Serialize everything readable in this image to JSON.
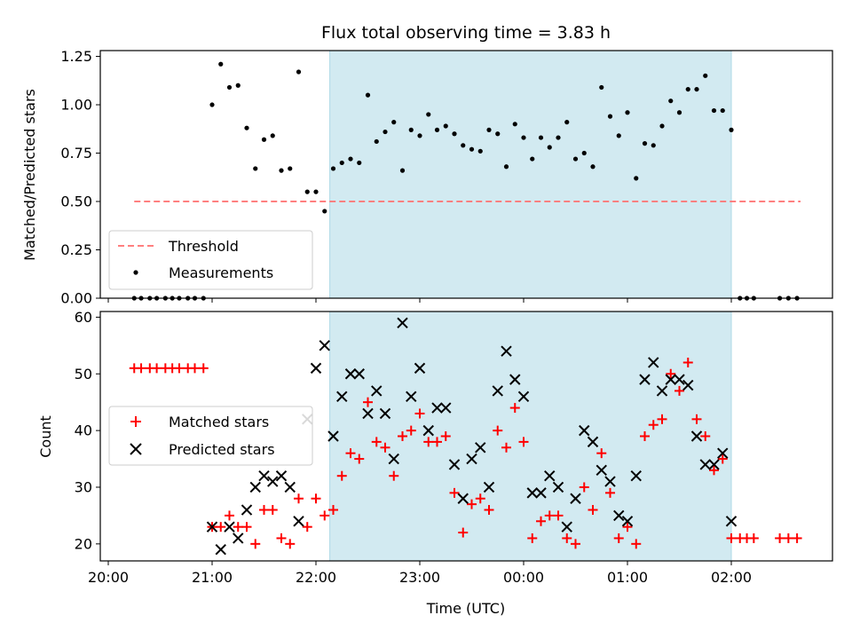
{
  "chart_data": [
    {
      "type": "scatter",
      "title": "Flux total observing time = 3.83 h",
      "ylabel": "Matched/Predicted stars",
      "xlabel": "",
      "xlim": [
        "20:00",
        "03:00"
      ],
      "ylim": [
        0,
        1.28
      ],
      "yticks": [
        "0.00",
        "0.25",
        "0.50",
        "0.75",
        "1.00",
        "1.25"
      ],
      "shaded_interval": [
        "22:08",
        "02:00"
      ],
      "shade_color": "#add8e6",
      "legend_placement": "lower-left",
      "legend": [
        "Threshold",
        "Measurements"
      ],
      "series": [
        {
          "name": "Threshold",
          "style": "dashed-line",
          "color": "#ff7f7f",
          "x": [
            "20:15",
            "02:40"
          ],
          "values": [
            0.5,
            0.5
          ]
        },
        {
          "name": "Measurements",
          "style": "dot",
          "color": "#000000",
          "x": [
            "20:15",
            "20:19",
            "20:24",
            "20:28",
            "20:33",
            "20:37",
            "20:41",
            "20:46",
            "20:50",
            "20:55",
            "21:00",
            "21:05",
            "21:10",
            "21:15",
            "21:20",
            "21:25",
            "21:30",
            "21:35",
            "21:40",
            "21:45",
            "21:50",
            "21:55",
            "22:00",
            "22:05",
            "22:10",
            "22:15",
            "22:20",
            "22:25",
            "22:30",
            "22:35",
            "22:40",
            "22:45",
            "22:50",
            "22:55",
            "23:00",
            "23:05",
            "23:10",
            "23:15",
            "23:20",
            "23:25",
            "23:30",
            "23:35",
            "23:40",
            "23:45",
            "23:50",
            "23:55",
            "00:00",
            "00:05",
            "00:10",
            "00:15",
            "00:20",
            "00:25",
            "00:30",
            "00:35",
            "00:40",
            "00:45",
            "00:50",
            "00:55",
            "01:00",
            "01:05",
            "01:10",
            "01:15",
            "01:20",
            "01:25",
            "01:30",
            "01:35",
            "01:40",
            "01:45",
            "01:50",
            "01:55",
            "02:00",
            "02:05",
            "02:09",
            "02:13",
            "02:28",
            "02:33",
            "02:38"
          ],
          "values": [
            0,
            0,
            0,
            0,
            0,
            0,
            0,
            0,
            0,
            0,
            1.0,
            1.21,
            1.09,
            1.1,
            0.88,
            0.67,
            0.82,
            0.84,
            0.66,
            0.67,
            1.17,
            0.55,
            0.55,
            0.45,
            0.67,
            0.7,
            0.72,
            0.7,
            1.05,
            0.81,
            0.86,
            0.91,
            0.66,
            0.87,
            0.84,
            0.95,
            0.87,
            0.89,
            0.85,
            0.79,
            0.77,
            0.76,
            0.87,
            0.85,
            0.68,
            0.9,
            0.83,
            0.72,
            0.83,
            0.78,
            0.83,
            0.91,
            0.72,
            0.75,
            0.68,
            1.09,
            0.94,
            0.84,
            0.96,
            0.62,
            0.8,
            0.79,
            0.89,
            1.02,
            0.96,
            1.08,
            1.08,
            1.15,
            0.97,
            0.97,
            0.87,
            0,
            0,
            0,
            0,
            0,
            0
          ]
        }
      ]
    },
    {
      "type": "scatter",
      "title": "",
      "xlabel": "Time (UTC)",
      "ylabel": "Count",
      "xlim": [
        "20:00",
        "03:00"
      ],
      "ylim": [
        17,
        61
      ],
      "yticks": [
        "20",
        "30",
        "40",
        "50",
        "60"
      ],
      "xticks": [
        "20:00",
        "21:00",
        "22:00",
        "23:00",
        "00:00",
        "01:00",
        "02:00"
      ],
      "shaded_interval": [
        "22:08",
        "02:00"
      ],
      "shade_color": "#add8e6",
      "legend_placement": "center-left",
      "legend": [
        "Matched stars",
        "Predicted stars"
      ],
      "series": [
        {
          "name": "Matched stars",
          "style": "plus",
          "color": "#ff0000",
          "x": [
            "20:15",
            "20:19",
            "20:24",
            "20:28",
            "20:33",
            "20:37",
            "20:41",
            "20:46",
            "20:50",
            "20:55",
            "21:00",
            "21:05",
            "21:10",
            "21:15",
            "21:20",
            "21:25",
            "21:30",
            "21:35",
            "21:40",
            "21:45",
            "21:50",
            "21:55",
            "22:00",
            "22:05",
            "22:10",
            "22:15",
            "22:20",
            "22:25",
            "22:30",
            "22:35",
            "22:40",
            "22:45",
            "22:50",
            "22:55",
            "23:00",
            "23:05",
            "23:10",
            "23:15",
            "23:20",
            "23:25",
            "23:30",
            "23:35",
            "23:40",
            "23:45",
            "23:50",
            "23:55",
            "00:00",
            "00:05",
            "00:10",
            "00:15",
            "00:20",
            "00:25",
            "00:30",
            "00:35",
            "00:40",
            "00:45",
            "00:50",
            "00:55",
            "01:00",
            "01:05",
            "01:10",
            "01:15",
            "01:20",
            "01:25",
            "01:30",
            "01:35",
            "01:40",
            "01:45",
            "01:50",
            "01:55",
            "02:00",
            "02:05",
            "02:09",
            "02:13",
            "02:28",
            "02:33",
            "02:38"
          ],
          "values": [
            51,
            51,
            51,
            51,
            51,
            51,
            51,
            51,
            51,
            51,
            23,
            23,
            25,
            23,
            23,
            20,
            26,
            26,
            21,
            20,
            28,
            23,
            28,
            25,
            26,
            32,
            36,
            35,
            45,
            38,
            37,
            32,
            39,
            40,
            43,
            38,
            38,
            39,
            29,
            22,
            27,
            28,
            26,
            40,
            37,
            44,
            38,
            21,
            24,
            25,
            25,
            21,
            20,
            30,
            26,
            36,
            29,
            21,
            23,
            20,
            39,
            41,
            42,
            50,
            47,
            52,
            42,
            39,
            33,
            35,
            21,
            21,
            21,
            21,
            21,
            21,
            21
          ]
        },
        {
          "name": "Predicted stars",
          "style": "x",
          "color": "#000000",
          "x": [
            "21:00",
            "21:05",
            "21:10",
            "21:15",
            "21:20",
            "21:25",
            "21:30",
            "21:35",
            "21:40",
            "21:45",
            "21:50",
            "21:55",
            "22:00",
            "22:05",
            "22:10",
            "22:15",
            "22:20",
            "22:25",
            "22:30",
            "22:35",
            "22:40",
            "22:45",
            "22:50",
            "22:55",
            "23:00",
            "23:05",
            "23:10",
            "23:15",
            "23:20",
            "23:25",
            "23:30",
            "23:35",
            "23:40",
            "23:45",
            "23:50",
            "23:55",
            "00:00",
            "00:05",
            "00:10",
            "00:15",
            "00:20",
            "00:25",
            "00:30",
            "00:35",
            "00:40",
            "00:45",
            "00:50",
            "00:55",
            "01:00",
            "01:05",
            "01:10",
            "01:15",
            "01:20",
            "01:25",
            "01:30",
            "01:35",
            "01:40",
            "01:45",
            "01:50",
            "01:55",
            "02:00"
          ],
          "values": [
            23,
            19,
            23,
            21,
            26,
            30,
            32,
            31,
            32,
            30,
            24,
            42,
            51,
            55,
            39,
            46,
            50,
            50,
            43,
            47,
            43,
            35,
            59,
            46,
            51,
            40,
            44,
            44,
            34,
            28,
            35,
            37,
            30,
            47,
            54,
            49,
            46,
            29,
            29,
            32,
            30,
            23,
            28,
            40,
            38,
            33,
            31,
            25,
            24,
            32,
            49,
            52,
            47,
            49,
            49,
            48,
            39,
            34,
            34,
            36,
            24
          ]
        }
      ]
    }
  ]
}
